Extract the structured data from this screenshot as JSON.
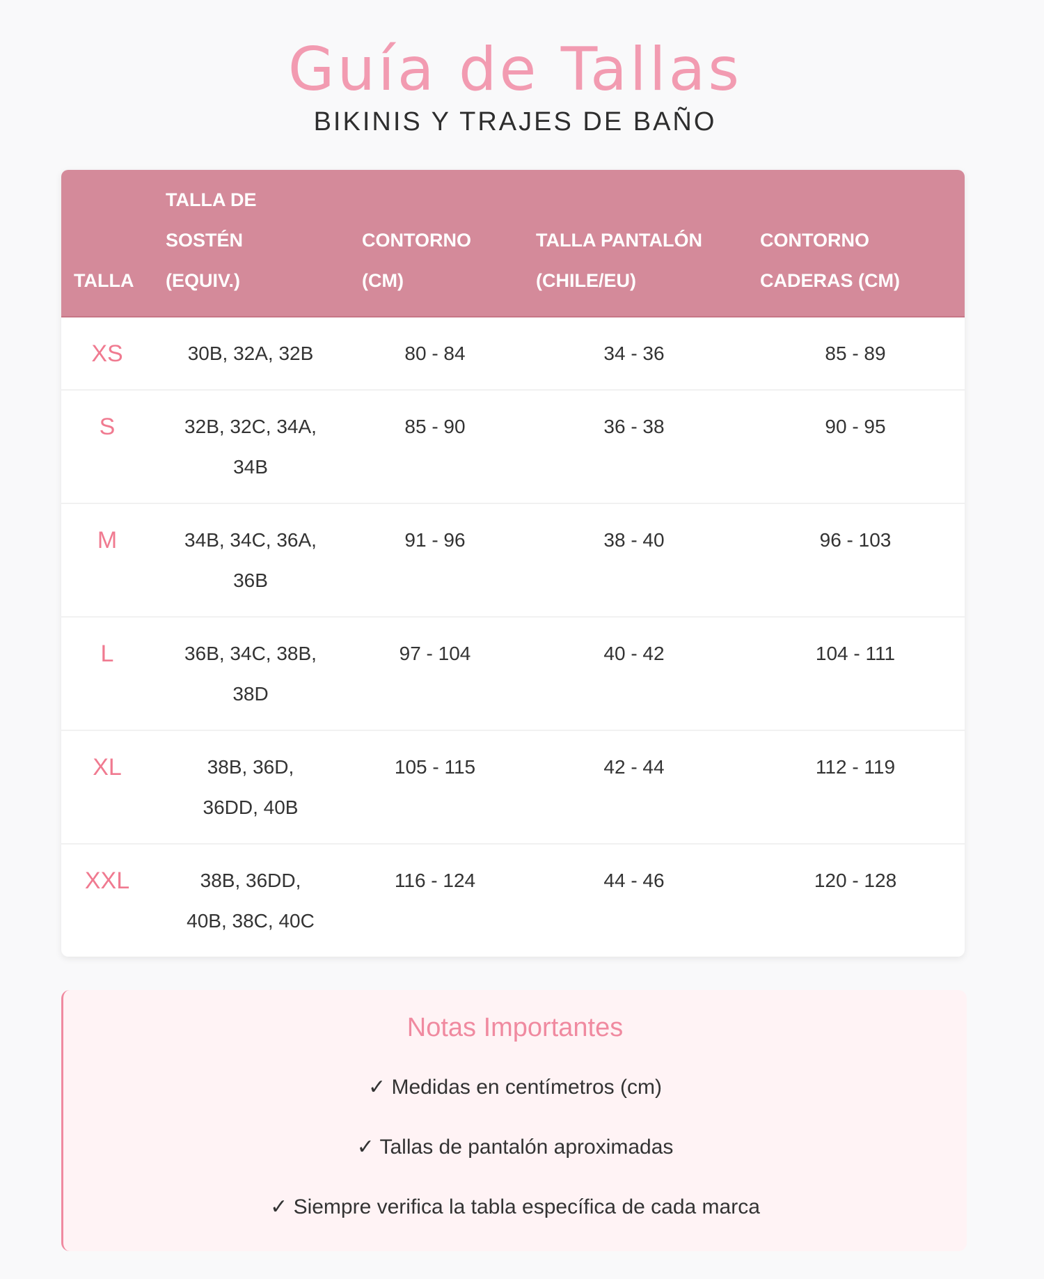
{
  "header": {
    "title": "Guía de Tallas",
    "subtitle": "BIKINIS Y TRAJES DE BAÑO"
  },
  "table": {
    "columns": [
      "TALLA",
      "TALLA DE SOSTÉN (EQUIV.)",
      "CONTORNO (CM)",
      "TALLA PANTALÓN (CHILE/EU)",
      "CONTORNO CADERAS (CM)"
    ],
    "rows": [
      {
        "size": "XS",
        "bra": "30B, 32A, 32B",
        "contour": "80 - 84",
        "pants": "34 - 36",
        "hips": "85 - 89"
      },
      {
        "size": "S",
        "bra": "32B, 32C, 34A, 34B",
        "contour": "85 - 90",
        "pants": "36 - 38",
        "hips": "90 - 95"
      },
      {
        "size": "M",
        "bra": "34B, 34C, 36A, 36B",
        "contour": "91 - 96",
        "pants": "38 - 40",
        "hips": "96 - 103"
      },
      {
        "size": "L",
        "bra": "36B, 34C, 38B, 38D",
        "contour": "97 - 104",
        "pants": "40 - 42",
        "hips": "104 - 111"
      },
      {
        "size": "XL",
        "bra": "38B, 36D, 36DD, 40B",
        "contour": "105 - 115",
        "pants": "42 - 44",
        "hips": "112 - 119"
      },
      {
        "size": "XXL",
        "bra": "38B, 36DD, 40B, 38C, 40C",
        "contour": "116 - 124",
        "pants": "44 - 46",
        "hips": "120 - 128"
      }
    ]
  },
  "notes": {
    "title": "Notas Importantes",
    "items": [
      "✓ Medidas en centímetros (cm)",
      "✓ Tallas de pantalón aproximadas",
      "✓ Siempre verifica la tabla específica de cada marca"
    ]
  },
  "colors": {
    "accent": "#f29bb1",
    "header_bg": "#d48a9a",
    "size_label": "#f07a90",
    "notes_bg": "#fff3f5"
  }
}
